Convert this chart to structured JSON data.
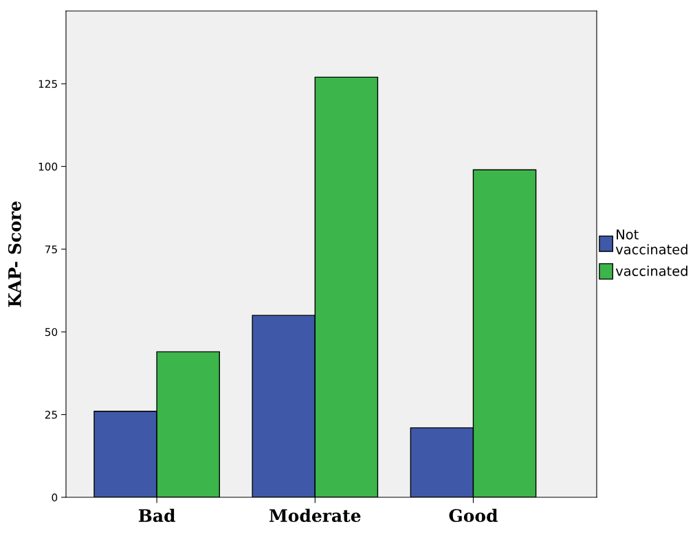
{
  "chart_data": {
    "type": "bar",
    "ylabel": "KAP- Score",
    "categories": [
      "Bad",
      "Moderate",
      "Good"
    ],
    "series": [
      {
        "name": "Not vaccinated",
        "color": "#3f58a7",
        "values": [
          26,
          55,
          21
        ]
      },
      {
        "name": "vaccinated",
        "color": "#3cb54a",
        "values": [
          44,
          127,
          99
        ]
      }
    ],
    "ylim": [
      0,
      147
    ],
    "yticks": [
      0,
      25,
      50,
      75,
      100,
      125
    ],
    "grid": false,
    "legend": "right"
  }
}
